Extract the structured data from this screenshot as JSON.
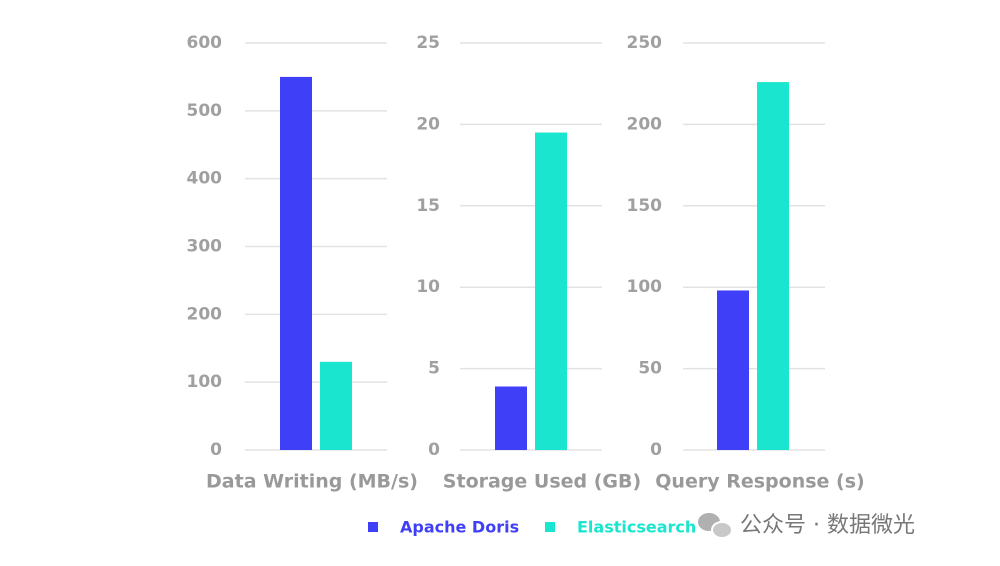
{
  "chart_data": [
    {
      "type": "bar",
      "xlabel": "Data Writing (MB/s)",
      "values": [
        550,
        130
      ],
      "ylim": [
        0,
        600
      ],
      "yticks": [
        0,
        100,
        200,
        300,
        400,
        500,
        600
      ],
      "grid": true
    },
    {
      "type": "bar",
      "xlabel": "Storage Used (GB)",
      "values": [
        3.9,
        19.5
      ],
      "ylim": [
        0,
        25
      ],
      "yticks": [
        0,
        5,
        10,
        15,
        20,
        25
      ],
      "grid": true
    },
    {
      "type": "bar",
      "xlabel": "Query Response (s)",
      "values": [
        98,
        226
      ],
      "ylim": [
        0,
        250
      ],
      "yticks": [
        0,
        50,
        100,
        150,
        200,
        250
      ],
      "grid": true
    }
  ],
  "legend": {
    "series": [
      {
        "name": "Apache Doris",
        "color": "#3f3ff7"
      },
      {
        "name": "Elasticsearch",
        "color": "#1ae6cf"
      }
    ]
  },
  "watermark": "公众号 · 数据微光"
}
